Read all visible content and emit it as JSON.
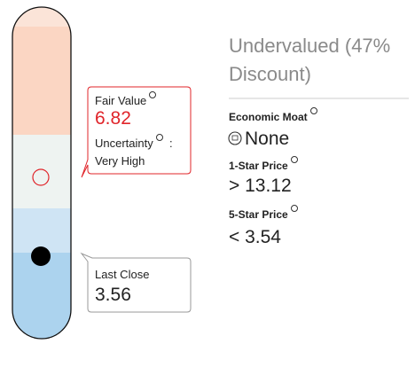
{
  "valuation": {
    "fair_value": {
      "label": "Fair Value",
      "value": 6.82
    },
    "uncertainty": {
      "label": "Uncertainty",
      "separator": ":",
      "value": "Very High"
    },
    "last_close": {
      "label": "Last Close",
      "value": 3.56
    },
    "assessment": "Undervalued (47% Discount)",
    "economic_moat": {
      "label": "Economic Moat",
      "value": "None"
    },
    "one_star_price": {
      "label": "1-Star Price",
      "symbol": ">",
      "value": 13.12
    },
    "five_star_price": {
      "label": "5-Star Price",
      "symbol": "<",
      "value": 3.54
    }
  }
}
